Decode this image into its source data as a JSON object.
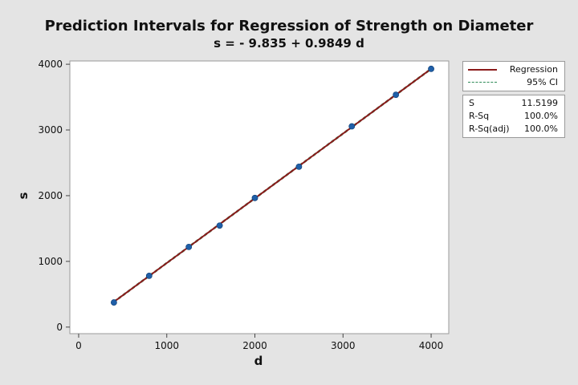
{
  "chart_data": {
    "type": "line",
    "title": "Prediction Intervals for Regression of Strength on Diameter",
    "subtitle": "s = - 9.835 + 0.9849 d",
    "xlabel": "d",
    "ylabel": "s",
    "xlim": [
      -100,
      4200
    ],
    "ylim": [
      -100,
      4050
    ],
    "xticks": [
      0,
      1000,
      2000,
      3000,
      4000
    ],
    "yticks": [
      0,
      1000,
      2000,
      3000,
      4000
    ],
    "grid": false,
    "legend_position": "right",
    "points": {
      "x": [
        400,
        800,
        1250,
        1600,
        2000,
        2500,
        3100,
        3600,
        4000
      ],
      "y": [
        375,
        780,
        1220,
        1545,
        1965,
        2440,
        3055,
        3535,
        3930
      ]
    },
    "regression": {
      "intercept": -9.835,
      "slope": 0.9849
    },
    "series": [
      {
        "name": "Regression",
        "color": "#8b1a1a",
        "style": "solid"
      },
      {
        "name": "95% CI",
        "color": "#2e8b57",
        "style": "dashed"
      }
    ],
    "point_color": "#1f5fa8",
    "stats": [
      {
        "label": "S",
        "value": "11.5199"
      },
      {
        "label": "R-Sq",
        "value": "100.0%"
      },
      {
        "label": "R-Sq(adj)",
        "value": "100.0%"
      }
    ]
  }
}
